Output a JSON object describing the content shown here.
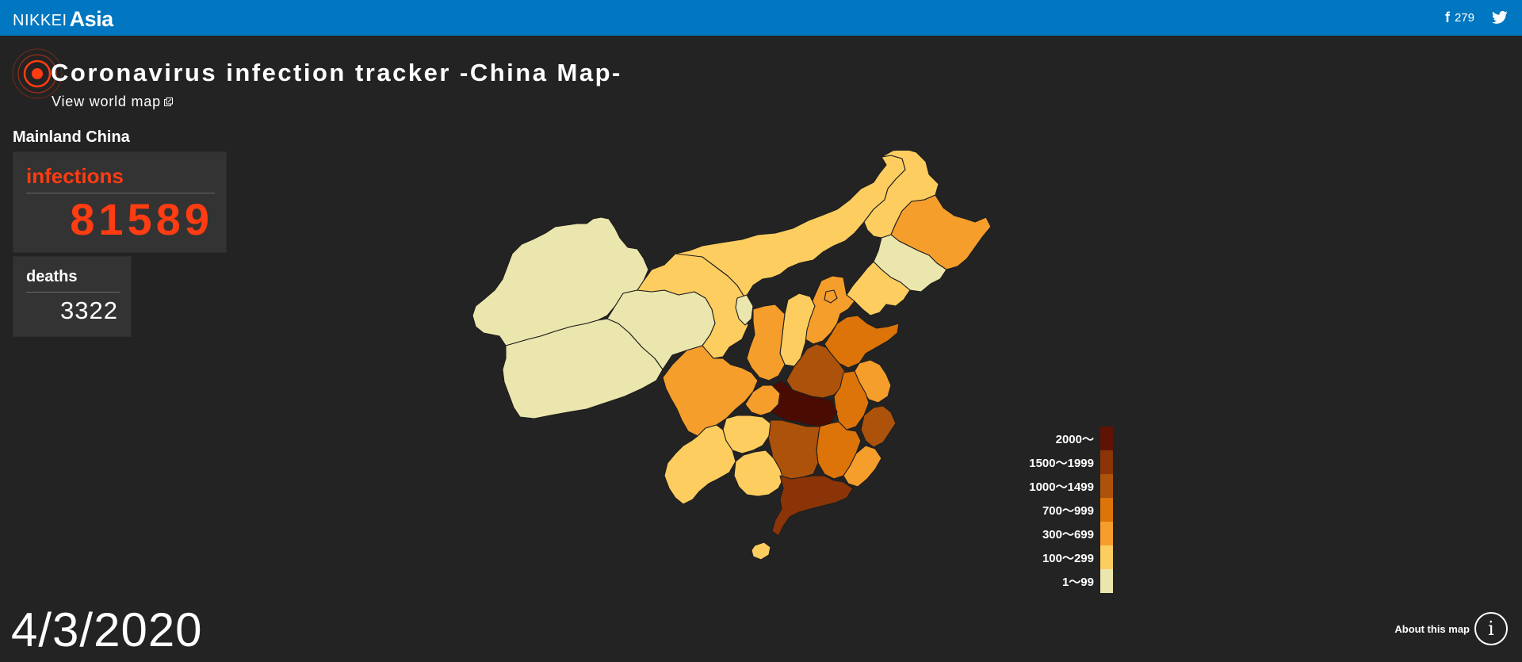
{
  "header": {
    "brand_primary": "NIKKEI",
    "brand_secondary": "Asia",
    "facebook_count": "279",
    "facebook_icon": "facebook-icon",
    "twitter_icon": "twitter-icon",
    "background_color": "#0077c0"
  },
  "page": {
    "title": "Coronavirus infection tracker -China Map-",
    "world_map_link": "View world map",
    "region_label": "Mainland China",
    "date": "4/3/2020",
    "about_label": "About this map",
    "about_icon": "i"
  },
  "stats": {
    "infections_label": "infections",
    "infections_value": "81589",
    "deaths_label": "deaths",
    "deaths_value": "3322",
    "accent_color": "#ff3c12"
  },
  "legend": [
    {
      "label": "2000～",
      "color": "#5e1305"
    },
    {
      "label": "1500～1999",
      "color": "#8a3408"
    },
    {
      "label": "1000～1499",
      "color": "#ad520a"
    },
    {
      "label": "700～999",
      "color": "#dc7409"
    },
    {
      "label": "300～699",
      "color": "#f59e2c"
    },
    {
      "label": "100～299",
      "color": "#fdcd60"
    },
    {
      "label": "1～99",
      "color": "#ebe6ad"
    }
  ]
}
